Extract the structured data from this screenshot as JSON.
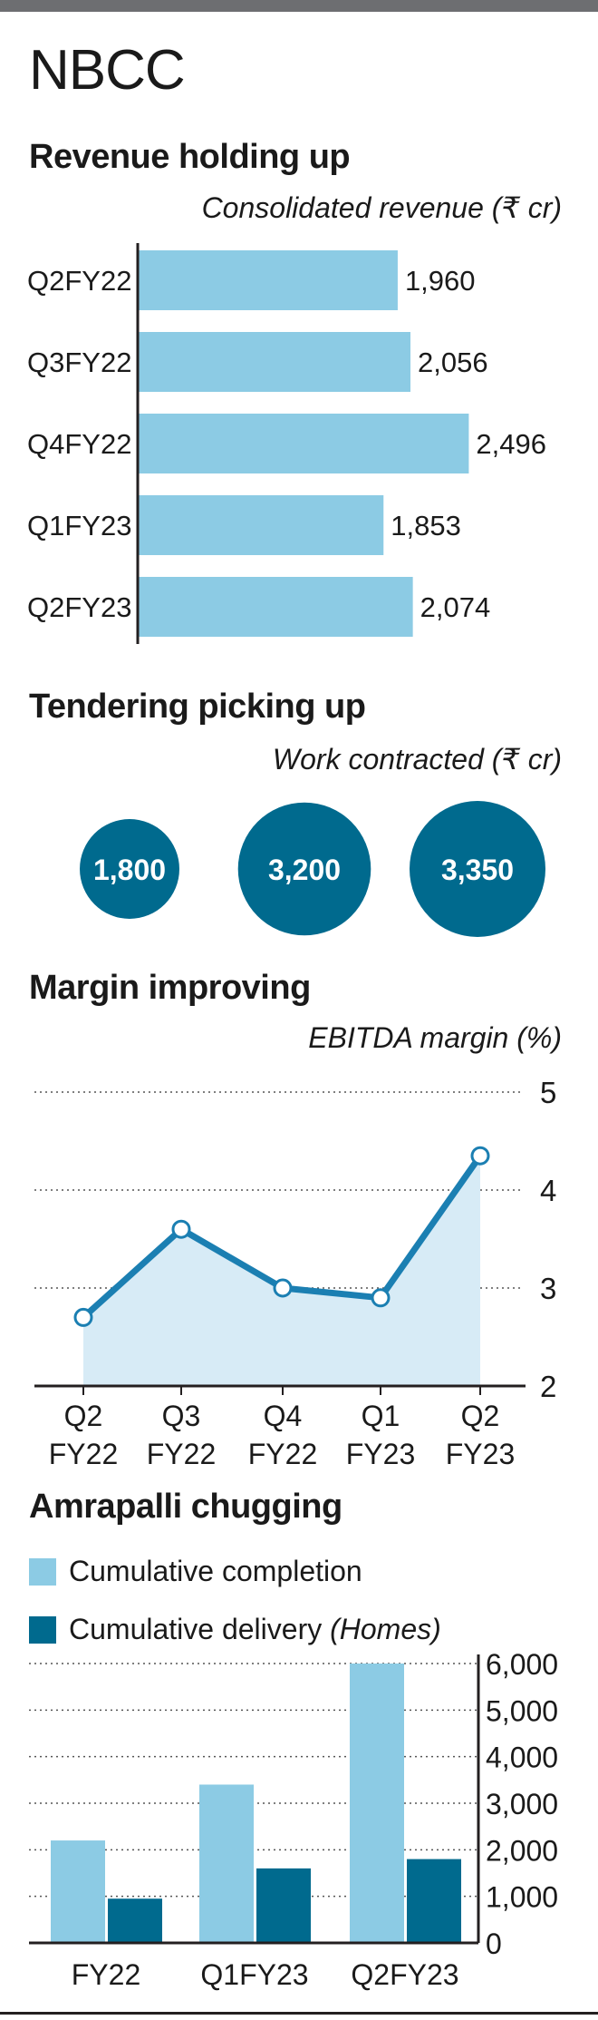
{
  "title": "NBCC",
  "colors": {
    "light_blue": "#8ccbe4",
    "dark_blue": "#006a8e",
    "area_fill": "#d7ebf6",
    "axis": "#231f20",
    "grid": "#555555"
  },
  "chart_data": [
    {
      "type": "bar",
      "orientation": "horizontal",
      "title": "Revenue holding up",
      "subtitle": "Consolidated revenue (₹ cr)",
      "categories": [
        "Q2FY22",
        "Q3FY22",
        "Q4FY22",
        "Q1FY23",
        "Q2FY23"
      ],
      "values": [
        1960,
        2056,
        2496,
        1853,
        2074
      ],
      "value_labels": [
        "1,960",
        "2,056",
        "2,496",
        "1,853",
        "2,074"
      ],
      "xlim": [
        0,
        2500
      ],
      "grid": false
    },
    {
      "type": "bubble",
      "title": "Tendering picking up",
      "subtitle": "Work contracted (₹ cr)",
      "values": [
        1800,
        3200,
        3350
      ],
      "value_labels": [
        "1,800",
        "3,200",
        "3,350"
      ]
    },
    {
      "type": "area",
      "title": "Margin improving",
      "subtitle": "EBITDA margin (%)",
      "categories": [
        [
          "Q2",
          "FY22"
        ],
        [
          "Q3",
          "FY22"
        ],
        [
          "Q4",
          "FY22"
        ],
        [
          "Q1",
          "FY23"
        ],
        [
          "Q2",
          "FY23"
        ]
      ],
      "values": [
        2.7,
        3.6,
        3.0,
        2.9,
        4.35
      ],
      "ylim": [
        2,
        5
      ],
      "yticks": [
        2,
        3,
        4,
        5
      ],
      "grid": true
    },
    {
      "type": "bar",
      "title": "Amrapalli chugging",
      "categories": [
        "FY22",
        "Q1FY23",
        "Q2FY23"
      ],
      "series": [
        {
          "name": "Cumulative completion",
          "values": [
            2200,
            3400,
            6000
          ]
        },
        {
          "name": "Cumulative delivery",
          "values": [
            950,
            1600,
            1800
          ]
        }
      ],
      "legend_unit": "(Homes)",
      "ylim": [
        0,
        6000
      ],
      "yticks": [
        0,
        1000,
        2000,
        3000,
        4000,
        5000,
        6000
      ],
      "ytick_labels": [
        "0",
        "1,000",
        "2,000",
        "3,000",
        "4,000",
        "5,000",
        "6,000"
      ],
      "grid": true,
      "legend": "top-left"
    }
  ]
}
